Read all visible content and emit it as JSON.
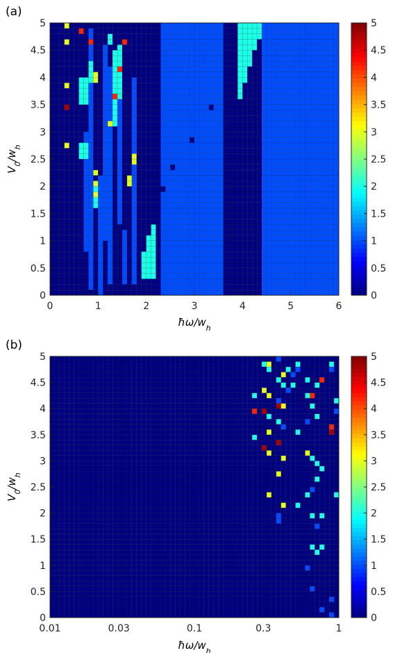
{
  "chart_data": [
    {
      "panel_label": "(a)",
      "type": "heatmap",
      "title": "",
      "xlabel": "ħω/w_h",
      "ylabel": "V_0/w_h",
      "xscale": "linear",
      "xlim": [
        0,
        6
      ],
      "ylim": [
        0,
        5
      ],
      "xticks": [
        0,
        1,
        2,
        3,
        4,
        5,
        6
      ],
      "xtick_labels": [
        "0",
        "1",
        "2",
        "3",
        "4",
        "5",
        "6"
      ],
      "yticks": [
        0,
        0.5,
        1,
        1.5,
        2,
        2.5,
        3,
        3.5,
        4,
        4.5,
        5
      ],
      "ytick_labels": [
        "0",
        "0.5",
        "1",
        "1.5",
        "2",
        "2.5",
        "3",
        "3.5",
        "4",
        "4.5",
        "5"
      ],
      "grid": {
        "nx": 60,
        "ny": 50
      },
      "background_value": 0,
      "colorbar": {
        "min": 0,
        "max": 5,
        "ticks": [
          0,
          0.5,
          1,
          1.5,
          2,
          2.5,
          3,
          3.5,
          4,
          4.5,
          5
        ],
        "tick_labels": [
          "0",
          "0.5",
          "1",
          "1.5",
          "2",
          "2.5",
          "3",
          "3.5",
          "4",
          "4.5",
          "5"
        ],
        "colormap": "jet"
      },
      "regions": [
        {
          "x": [
            2.3,
            3.6
          ],
          "y": [
            0,
            5
          ],
          "value": 1
        },
        {
          "x": [
            4.45,
            6.0
          ],
          "y": [
            0,
            5
          ],
          "value": 1
        },
        {
          "x": [
            1.7,
            1.8
          ],
          "y": [
            0.2,
            4.0
          ],
          "value": 1
        },
        {
          "x": [
            1.2,
            1.3
          ],
          "y": [
            0.2,
            4.2
          ],
          "value": 1
        },
        {
          "x": [
            0.7,
            0.8
          ],
          "y": [
            0.8,
            3.0
          ],
          "value": 1
        },
        {
          "x": [
            0.8,
            0.9
          ],
          "y": [
            0.1,
            4.9
          ],
          "value": 1
        },
        {
          "x": [
            1.0,
            1.1
          ],
          "y": [
            0.0,
            2.2
          ],
          "value": 1
        },
        {
          "x": [
            1.1,
            1.2
          ],
          "y": [
            1.0,
            4.6
          ],
          "value": 1
        },
        {
          "x": [
            1.4,
            1.5
          ],
          "y": [
            1.3,
            3.6
          ],
          "value": 1
        },
        {
          "x": [
            1.5,
            1.6
          ],
          "y": [
            0.2,
            1.2
          ],
          "value": 1
        },
        {
          "x": [
            1.9,
            2.0
          ],
          "y": [
            0.3,
            0.8
          ],
          "value": 2
        },
        {
          "x": [
            2.0,
            2.2
          ],
          "y": [
            0.3,
            1.1
          ],
          "value": 2
        },
        {
          "x": [
            2.1,
            2.2
          ],
          "y": [
            1.1,
            1.3
          ],
          "value": 2
        },
        {
          "x": [
            1.3,
            1.4
          ],
          "y": [
            3.1,
            4.5
          ],
          "value": 2
        },
        {
          "x": [
            1.4,
            1.5
          ],
          "y": [
            3.6,
            4.6
          ],
          "value": 2
        },
        {
          "x": [
            0.6,
            0.8
          ],
          "y": [
            3.5,
            4.0
          ],
          "value": 2
        },
        {
          "x": [
            0.6,
            0.8
          ],
          "y": [
            2.5,
            2.8
          ],
          "value": 2
        },
        {
          "x": [
            0.8,
            0.9
          ],
          "y": [
            3.9,
            4.3
          ],
          "value": 2
        },
        {
          "x": [
            0.9,
            1.0
          ],
          "y": [
            1.6,
            2.0
          ],
          "value": 2
        },
        {
          "x": [
            1.2,
            1.3
          ],
          "y": [
            4.6,
            4.8
          ],
          "value": 2
        }
      ],
      "triangle": {
        "x_base": [
          3.6,
          4.45
        ],
        "x_top": [
          3.6,
          4.45
        ],
        "apex_point": [
          3.9,
          3.5
        ],
        "value": 2
      },
      "cells": [
        {
          "x": 0.35,
          "y": 4.95,
          "value": 3
        },
        {
          "x": 0.65,
          "y": 4.85,
          "value": 4.2
        },
        {
          "x": 0.85,
          "y": 4.65,
          "value": 4.2
        },
        {
          "x": 1.55,
          "y": 4.65,
          "value": 4.2
        },
        {
          "x": 0.35,
          "y": 4.65,
          "value": 3
        },
        {
          "x": 1.45,
          "y": 4.15,
          "value": 4.2
        },
        {
          "x": 0.95,
          "y": 4.05,
          "value": 3
        },
        {
          "x": 0.95,
          "y": 3.95,
          "value": 3
        },
        {
          "x": 0.35,
          "y": 3.85,
          "value": 3
        },
        {
          "x": 1.35,
          "y": 3.65,
          "value": 4.2
        },
        {
          "x": 0.35,
          "y": 3.45,
          "value": 4.8
        },
        {
          "x": 1.25,
          "y": 3.15,
          "value": 3
        },
        {
          "x": 1.75,
          "y": 2.55,
          "value": 3
        },
        {
          "x": 1.75,
          "y": 2.45,
          "value": 3
        },
        {
          "x": 0.35,
          "y": 2.75,
          "value": 3
        },
        {
          "x": 0.95,
          "y": 2.25,
          "value": 3
        },
        {
          "x": 0.95,
          "y": 2.05,
          "value": 3
        },
        {
          "x": 1.65,
          "y": 2.05,
          "value": 3
        },
        {
          "x": 1.65,
          "y": 2.15,
          "value": 3
        },
        {
          "x": 0.95,
          "y": 1.85,
          "value": 3
        },
        {
          "x": 2.95,
          "y": 2.85,
          "value": 0
        },
        {
          "x": 3.35,
          "y": 3.45,
          "value": 0
        },
        {
          "x": 2.55,
          "y": 2.35,
          "value": 0
        },
        {
          "x": 2.35,
          "y": 1.95,
          "value": 0
        },
        {
          "x": 3.65,
          "y": 3.75,
          "value": 0
        }
      ]
    },
    {
      "panel_label": "(b)",
      "type": "heatmap",
      "title": "",
      "xlabel": "ħω/w_h",
      "ylabel": "V_0/w_h",
      "xscale": "log",
      "xlim": [
        0.01,
        1
      ],
      "ylim": [
        0,
        5
      ],
      "xticks": [
        0.01,
        0.03,
        0.1,
        0.3,
        1
      ],
      "xtick_labels": [
        "0.01",
        "0.03",
        "0.1",
        "0.3",
        "1"
      ],
      "yticks": [
        0,
        0.5,
        1,
        1.5,
        2,
        2.5,
        3,
        3.5,
        4,
        4.5,
        5
      ],
      "ytick_labels": [
        "0",
        "0.5",
        "1",
        "1.5",
        "2",
        "2.5",
        "3",
        "3.5",
        "4",
        "4.5",
        "5"
      ],
      "grid": {
        "nx": 60,
        "ny": 50
      },
      "background_value": 0,
      "colorbar": {
        "min": 0,
        "max": 5,
        "ticks": [
          0,
          0.5,
          1,
          1.5,
          2,
          2.5,
          3,
          3.5,
          4,
          4.5,
          5
        ],
        "tick_labels": [
          "0",
          "0.5",
          "1",
          "1.5",
          "2",
          "2.5",
          "3",
          "3.5",
          "4",
          "4.5",
          "5"
        ],
        "colormap": "jet"
      },
      "cells": [
        {
          "x": 0.3,
          "y": 4.85,
          "value": 2
        },
        {
          "x": 0.34,
          "y": 4.85,
          "value": 3
        },
        {
          "x": 0.37,
          "y": 4.95,
          "value": 1
        },
        {
          "x": 0.34,
          "y": 4.75,
          "value": 2
        },
        {
          "x": 0.41,
          "y": 4.65,
          "value": 3
        },
        {
          "x": 0.37,
          "y": 4.55,
          "value": 2
        },
        {
          "x": 0.41,
          "y": 4.45,
          "value": 2
        },
        {
          "x": 0.3,
          "y": 4.35,
          "value": 3
        },
        {
          "x": 0.27,
          "y": 4.25,
          "value": 2
        },
        {
          "x": 0.34,
          "y": 4.25,
          "value": 3
        },
        {
          "x": 0.37,
          "y": 4.15,
          "value": 1
        },
        {
          "x": 0.41,
          "y": 4.05,
          "value": 3
        },
        {
          "x": 0.37,
          "y": 4.05,
          "value": 4.8
        },
        {
          "x": 0.3,
          "y": 3.95,
          "value": 4.8
        },
        {
          "x": 0.34,
          "y": 3.85,
          "value": 2
        },
        {
          "x": 0.26,
          "y": 3.95,
          "value": 4.2
        },
        {
          "x": 0.37,
          "y": 3.75,
          "value": 2
        },
        {
          "x": 0.41,
          "y": 3.65,
          "value": 1
        },
        {
          "x": 0.34,
          "y": 3.55,
          "value": 3
        },
        {
          "x": 0.26,
          "y": 3.45,
          "value": 2
        },
        {
          "x": 0.37,
          "y": 3.35,
          "value": 4.8
        },
        {
          "x": 0.3,
          "y": 3.25,
          "value": 4.8
        },
        {
          "x": 0.34,
          "y": 3.15,
          "value": 3
        },
        {
          "x": 0.41,
          "y": 3.05,
          "value": 3
        },
        {
          "x": 0.37,
          "y": 2.75,
          "value": 3
        },
        {
          "x": 0.34,
          "y": 2.35,
          "value": 3
        },
        {
          "x": 0.41,
          "y": 2.15,
          "value": 3
        },
        {
          "x": 0.37,
          "y": 1.95,
          "value": 1
        },
        {
          "x": 0.37,
          "y": 1.85,
          "value": 1
        },
        {
          "x": 0.45,
          "y": 4.75,
          "value": 2
        },
        {
          "x": 0.49,
          "y": 4.65,
          "value": 1
        },
        {
          "x": 0.49,
          "y": 4.45,
          "value": 2
        },
        {
          "x": 0.45,
          "y": 4.35,
          "value": 1
        },
        {
          "x": 0.54,
          "y": 4.85,
          "value": 2
        },
        {
          "x": 0.54,
          "y": 4.75,
          "value": 1
        },
        {
          "x": 0.59,
          "y": 4.55,
          "value": 2
        },
        {
          "x": 0.59,
          "y": 4.25,
          "value": 2
        },
        {
          "x": 0.65,
          "y": 4.25,
          "value": 4.2
        },
        {
          "x": 0.65,
          "y": 4.05,
          "value": 2
        },
        {
          "x": 0.72,
          "y": 4.45,
          "value": 2
        },
        {
          "x": 0.79,
          "y": 4.55,
          "value": 4.2
        },
        {
          "x": 0.87,
          "y": 4.85,
          "value": 2
        },
        {
          "x": 0.87,
          "y": 4.75,
          "value": 1
        },
        {
          "x": 0.95,
          "y": 4.15,
          "value": 2
        },
        {
          "x": 0.95,
          "y": 3.95,
          "value": 1
        },
        {
          "x": 0.87,
          "y": 3.65,
          "value": 4.2
        },
        {
          "x": 0.87,
          "y": 3.55,
          "value": 4.8
        },
        {
          "x": 0.72,
          "y": 3.85,
          "value": 2
        },
        {
          "x": 0.59,
          "y": 3.75,
          "value": 1
        },
        {
          "x": 0.54,
          "y": 3.55,
          "value": 2
        },
        {
          "x": 0.59,
          "y": 3.15,
          "value": 3
        },
        {
          "x": 0.65,
          "y": 3.05,
          "value": 2
        },
        {
          "x": 0.72,
          "y": 2.95,
          "value": 2
        },
        {
          "x": 0.79,
          "y": 2.85,
          "value": 2
        },
        {
          "x": 0.72,
          "y": 2.65,
          "value": 2
        },
        {
          "x": 0.65,
          "y": 2.45,
          "value": 1
        },
        {
          "x": 0.59,
          "y": 2.35,
          "value": 2
        },
        {
          "x": 0.54,
          "y": 2.15,
          "value": 2
        },
        {
          "x": 0.65,
          "y": 1.95,
          "value": 2
        },
        {
          "x": 0.79,
          "y": 1.95,
          "value": 2
        },
        {
          "x": 0.95,
          "y": 2.35,
          "value": 2
        },
        {
          "x": 0.72,
          "y": 1.75,
          "value": 1
        },
        {
          "x": 0.65,
          "y": 1.35,
          "value": 2
        },
        {
          "x": 0.79,
          "y": 1.35,
          "value": 2
        },
        {
          "x": 0.72,
          "y": 1.25,
          "value": 2
        },
        {
          "x": 0.59,
          "y": 0.95,
          "value": 1
        },
        {
          "x": 0.65,
          "y": 0.55,
          "value": 1
        },
        {
          "x": 0.87,
          "y": 0.35,
          "value": 1
        },
        {
          "x": 0.79,
          "y": 0.15,
          "value": 1
        },
        {
          "x": 0.87,
          "y": 0.05,
          "value": 1
        }
      ]
    }
  ]
}
